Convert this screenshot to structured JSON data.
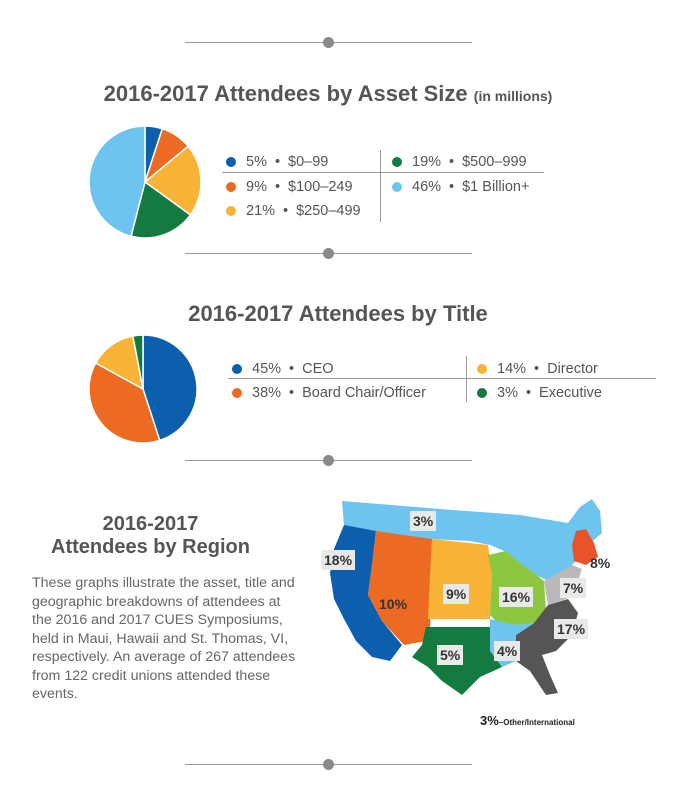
{
  "chart_data": [
    {
      "type": "pie",
      "title": "2016-2017 Attendees by Asset Size",
      "subtitle": "(in millions)",
      "slices": [
        {
          "value": 5,
          "pct_label": "5%",
          "label": "$0–99",
          "color": "#0b5fad"
        },
        {
          "value": 9,
          "pct_label": "9%",
          "label": "$100–249",
          "color": "#ec6a22"
        },
        {
          "value": 21,
          "pct_label": "21%",
          "label": "$250–499",
          "color": "#f9b336"
        },
        {
          "value": 19,
          "pct_label": "19%",
          "label": "$500–999",
          "color": "#137a40"
        },
        {
          "value": 46,
          "pct_label": "46%",
          "label": "$1 Billion+",
          "color": "#6cc4ef"
        }
      ]
    },
    {
      "type": "pie",
      "title": "2016-2017 Attendees by Title",
      "slices": [
        {
          "value": 45,
          "pct_label": "45%",
          "label": "CEO",
          "color": "#0b5fad"
        },
        {
          "value": 38,
          "pct_label": "38%",
          "label": "Board Chair/Officer",
          "color": "#ec6a22"
        },
        {
          "value": 14,
          "pct_label": "14%",
          "label": "Director",
          "color": "#f9b336"
        },
        {
          "value": 3,
          "pct_label": "3%",
          "label": "Executive",
          "color": "#137a40"
        }
      ]
    }
  ],
  "region": {
    "title_line1": "2016-2017",
    "title_line2": "Attendees by Region",
    "description": "These graphs illustrate the asset, title and geographic breakdowns of attendees at the 2016 and 2017 CUES Symposiums, held in Maui, Hawaii and St. Thomas, VI, respectively. An average of 267 attendees from 122 credit unions attended these events.",
    "labels": {
      "north": "3%",
      "west_coast": "18%",
      "mountain": "10%",
      "plains": "9%",
      "great_lakes": "16%",
      "northeast": "8%",
      "mid_atlantic": "7%",
      "southeast": "17%",
      "south_central": "5%",
      "mid_south": "4%"
    },
    "other_value": "3%",
    "other_label": "–Other/International",
    "colors": {
      "north": "#6cc4ef",
      "west_coast": "#0b5fad",
      "mountain": "#ec6a22",
      "plains": "#f9b336",
      "great_lakes": "#8dc63f",
      "northeast": "#e8532a",
      "mid_atlantic": "#b9b9b9",
      "southeast": "#555555",
      "south_central": "#137a40",
      "mid_south": "#6cc4ef"
    }
  }
}
